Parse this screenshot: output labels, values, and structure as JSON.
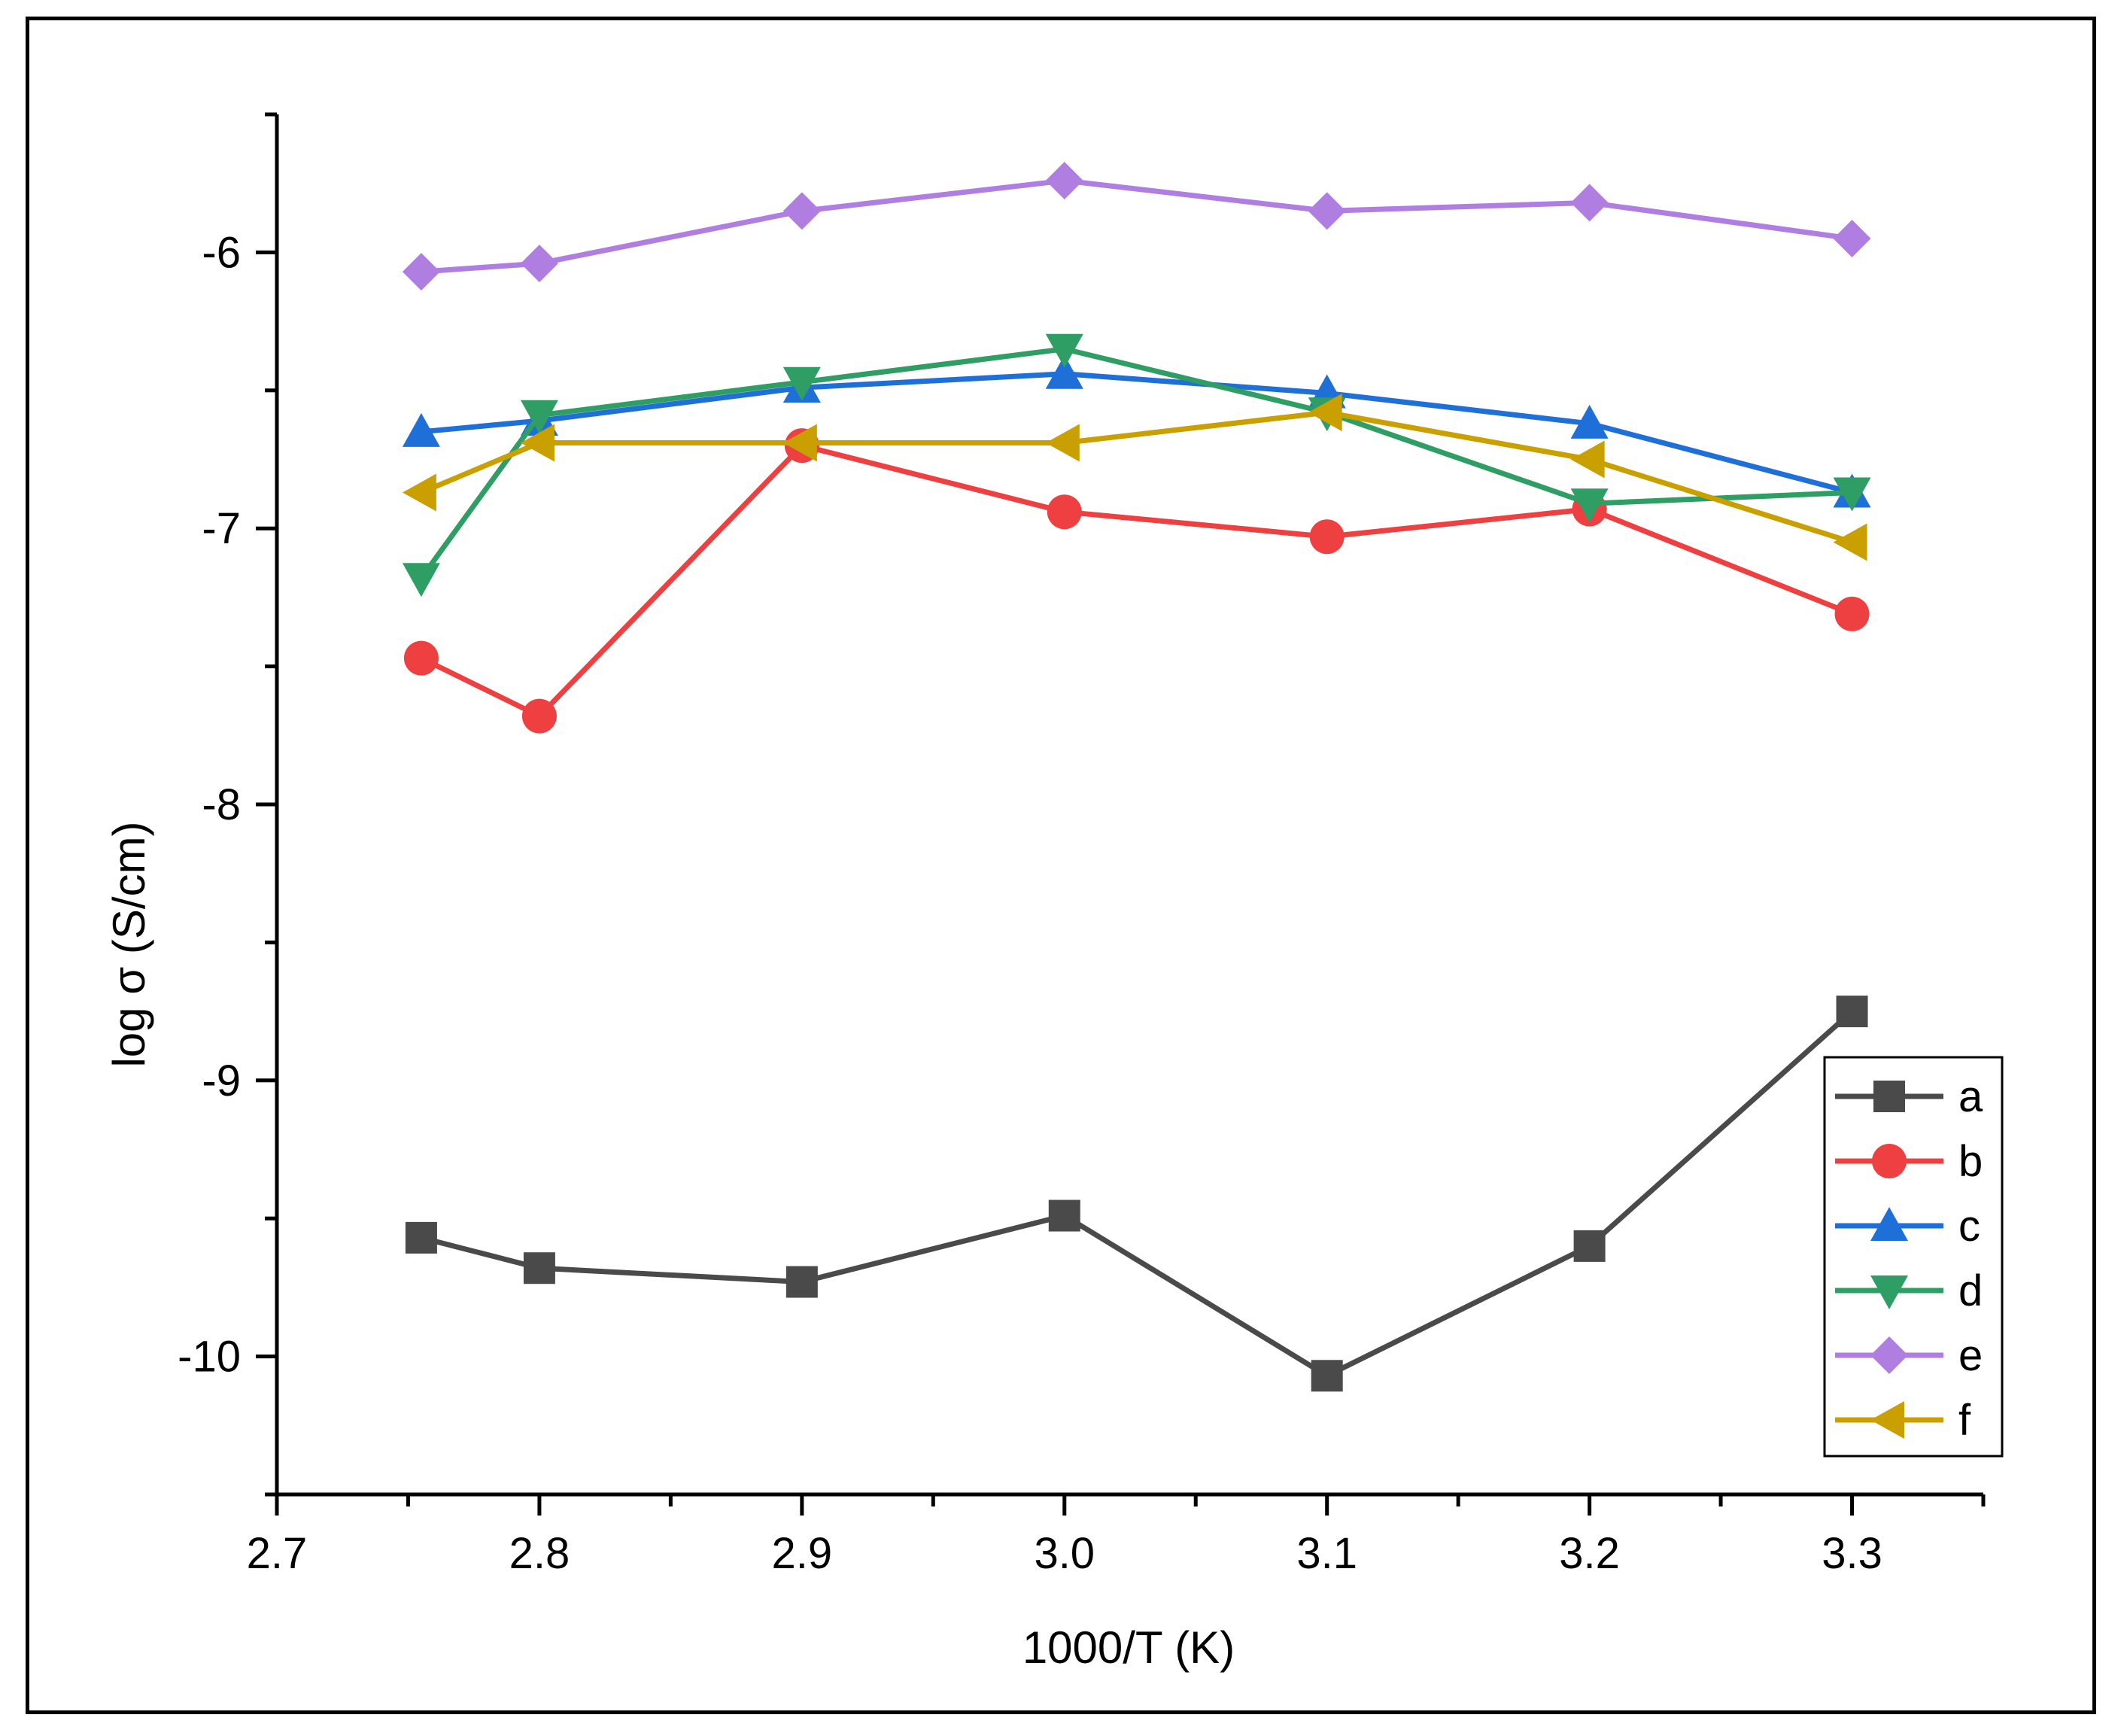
{
  "chart_data": {
    "type": "line",
    "title": "",
    "xlabel": "1000/T (K)",
    "ylabel": "log σ (S/cm)",
    "xlim": [
      2.7,
      3.35
    ],
    "ylim": [
      -10.5,
      -5.5
    ],
    "x_ticks": [
      2.7,
      2.8,
      2.9,
      3.0,
      3.1,
      3.2,
      3.3
    ],
    "x_tick_labels": [
      "2.7",
      "2.8",
      "2.9",
      "3.0",
      "3.1",
      "3.2",
      "3.3"
    ],
    "y_ticks": [
      -10,
      -9,
      -8,
      -7,
      -6
    ],
    "y_tick_labels": [
      "-10",
      "-9",
      "-8",
      "-7",
      "-6"
    ],
    "grid": false,
    "legend_position": "bottom-right",
    "x": [
      2.755,
      2.8,
      2.9,
      3.0,
      3.1,
      3.2,
      3.3
    ],
    "series": [
      {
        "name": "a",
        "color": "#4a4a4a",
        "marker": "square",
        "values": [
          -9.57,
          -9.68,
          -9.73,
          -9.49,
          -10.07,
          -9.6,
          -8.75
        ]
      },
      {
        "name": "b",
        "color": "#ee4040",
        "marker": "circle",
        "values": [
          -7.47,
          -7.68,
          -6.7,
          -6.94,
          -7.03,
          -6.93,
          -7.31
        ]
      },
      {
        "name": "c",
        "color": "#1f6fd8",
        "marker": "triangle-up",
        "values": [
          -6.65,
          -6.61,
          -6.49,
          -6.44,
          -6.51,
          -6.62,
          -6.87
        ]
      },
      {
        "name": "d",
        "color": "#2e9e64",
        "marker": "triangle-down",
        "values": [
          -7.18,
          -6.59,
          -6.47,
          -6.35,
          -6.58,
          -6.91,
          -6.87
        ]
      },
      {
        "name": "e",
        "color": "#b07ee0",
        "marker": "diamond",
        "values": [
          -6.07,
          -6.04,
          -5.85,
          -5.74,
          -5.85,
          -5.82,
          -5.95
        ]
      },
      {
        "name": "f",
        "color": "#c9a000",
        "marker": "triangle-left",
        "values": [
          -6.87,
          -6.69,
          -6.69,
          -6.69,
          -6.58,
          -6.75,
          -7.05
        ]
      }
    ]
  }
}
